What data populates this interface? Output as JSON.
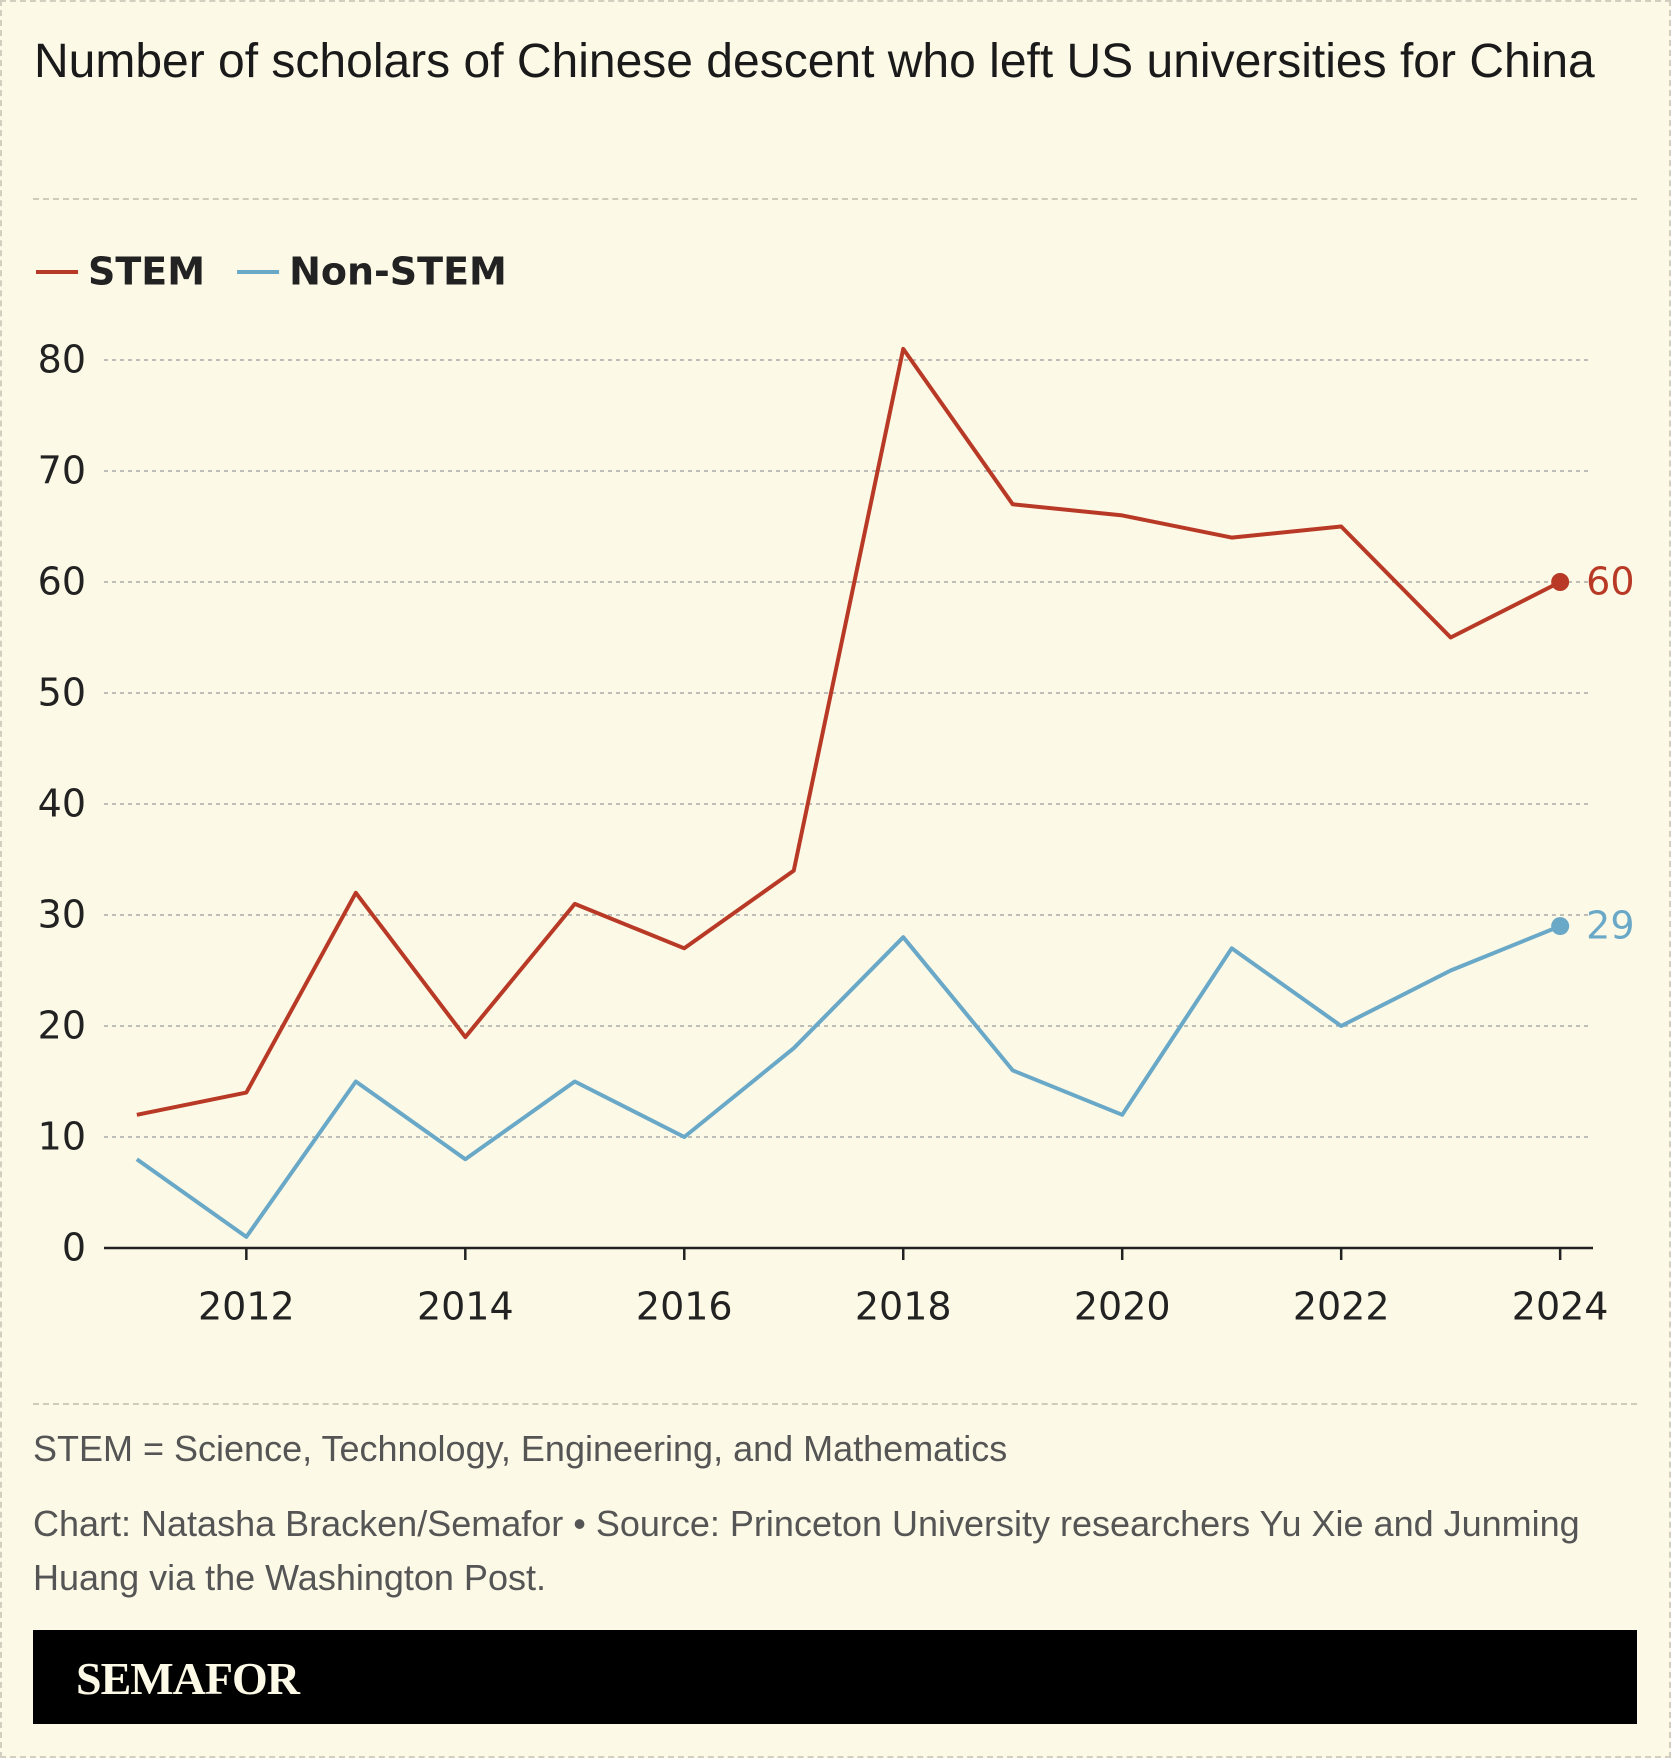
{
  "chart_data": {
    "type": "line",
    "title": "Number of scholars of Chinese descent who left US universities for China",
    "x": [
      2011,
      2012,
      2013,
      2014,
      2015,
      2016,
      2017,
      2018,
      2019,
      2020,
      2021,
      2022,
      2023,
      2024
    ],
    "series": [
      {
        "name": "STEM",
        "color": "#b83a26",
        "values": [
          12,
          14,
          32,
          19,
          31,
          27,
          34,
          81,
          67,
          66,
          64,
          65,
          55,
          60
        ]
      },
      {
        "name": "Non-STEM",
        "color": "#6aa8c8",
        "values": [
          8,
          1,
          15,
          8,
          15,
          10,
          18,
          28,
          16,
          12,
          27,
          20,
          25,
          29
        ]
      }
    ],
    "xlim": [
      2010.7,
      2024.3
    ],
    "xticks": [
      2012,
      2014,
      2016,
      2018,
      2020,
      2022,
      2024
    ],
    "ylim": [
      0,
      82
    ],
    "yticks": [
      0,
      10,
      20,
      30,
      40,
      50,
      60,
      70,
      80
    ],
    "grid": true,
    "legend": "top-left"
  },
  "footer": {
    "note": "STEM = Science, Technology, Engineering, and Mathematics",
    "source": "Chart: Natasha Bracken/Semafor • Source: Princeton University researchers Yu Xie and Junming Huang via the Washington Post.",
    "brand": "SEMAFOR"
  }
}
